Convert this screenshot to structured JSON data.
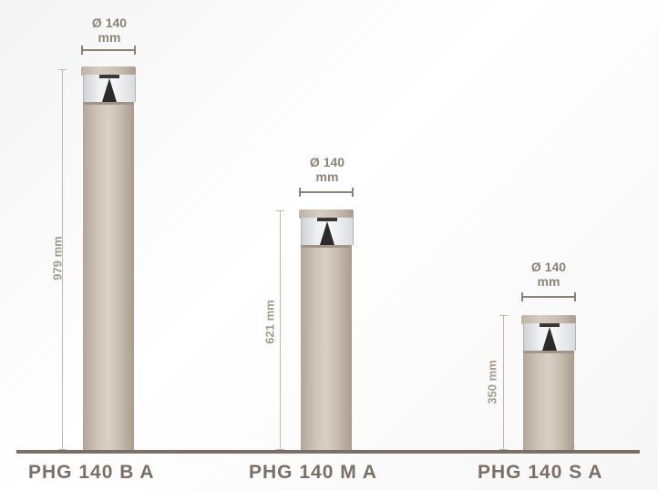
{
  "products": [
    {
      "model": "PHG 140 B A",
      "height_label": "979 mm",
      "diameter_symbol_value": "Ø 140",
      "diameter_unit": "mm"
    },
    {
      "model": "PHG 140 M A",
      "height_label": "621 mm",
      "diameter_symbol_value": "Ø 140",
      "diameter_unit": "mm"
    },
    {
      "model": "PHG 140 S A",
      "height_label": "350 mm",
      "diameter_symbol_value": "Ø 140",
      "diameter_unit": "mm"
    }
  ],
  "colors": {
    "pole": "#c9beb2",
    "ground": "#7a6f66",
    "dimension_text": "#a39a90",
    "model_text": "#7a6f66"
  }
}
